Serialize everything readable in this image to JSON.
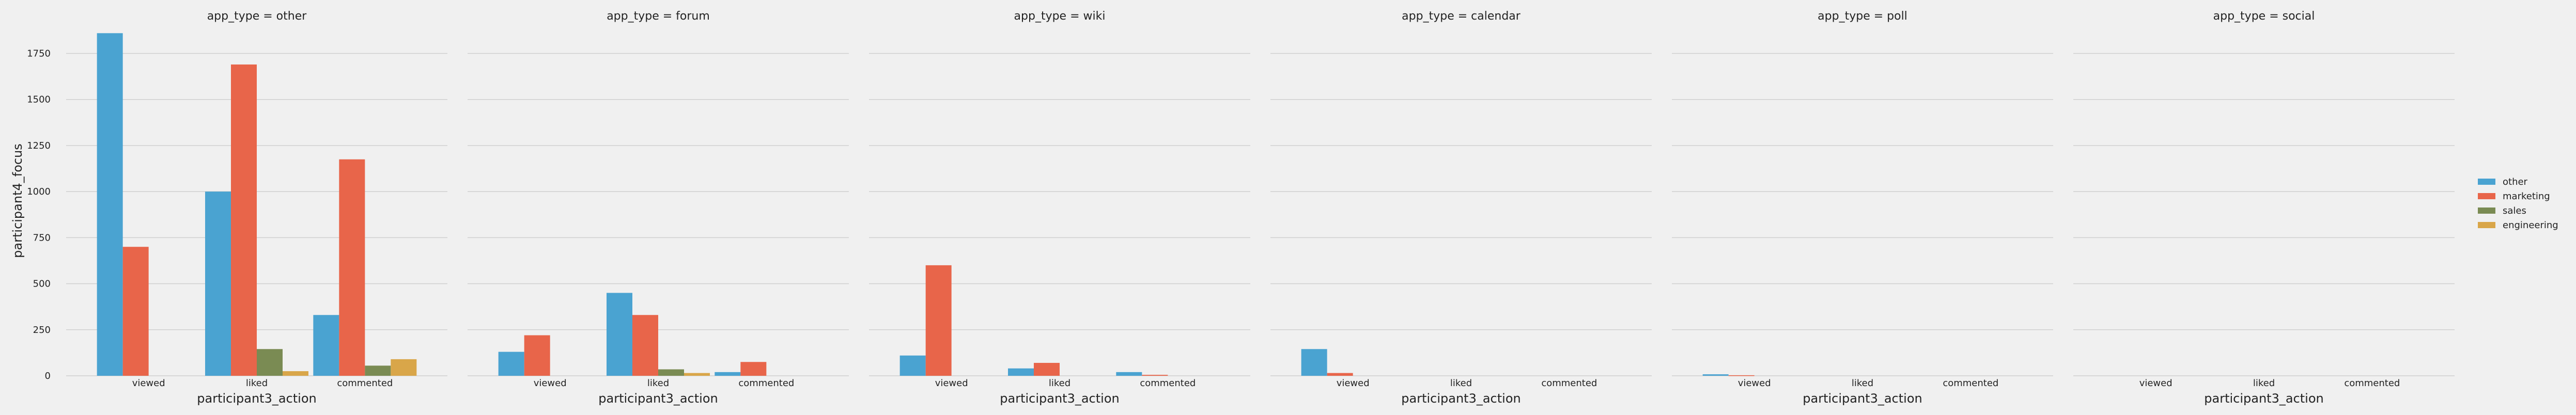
{
  "chart_data": {
    "type": "bar",
    "facet_prefix": "app_type = ",
    "facets": [
      "other",
      "forum",
      "wiki",
      "calendar",
      "poll",
      "social"
    ],
    "categories": [
      "viewed",
      "liked",
      "commented"
    ],
    "xlabel": "participant3_action",
    "ylabel": "participant4_focus",
    "ylim": [
      0,
      1900
    ],
    "yticks": [
      0,
      250,
      500,
      750,
      1000,
      1250,
      1500,
      1750
    ],
    "ytick_labels": [
      "0",
      "250",
      "500",
      "750",
      "1000",
      "1250",
      "1500",
      "1750"
    ],
    "grid": true,
    "legend_position": "right",
    "series_colors": {
      "other": "#4aa3d1",
      "marketing": "#e8654a",
      "sales": "#7a8b53",
      "engineering": "#d9a649"
    },
    "series": [
      {
        "name": "other",
        "values": {
          "other": [
            1860,
            1000,
            330
          ],
          "forum": [
            130,
            450,
            20
          ],
          "wiki": [
            110,
            40,
            20
          ],
          "calendar": [
            145,
            0,
            0
          ],
          "poll": [
            8,
            0,
            0
          ],
          "social": [
            0,
            0,
            0
          ]
        }
      },
      {
        "name": "marketing",
        "values": {
          "other": [
            700,
            1690,
            1175
          ],
          "forum": [
            220,
            330,
            75
          ],
          "wiki": [
            600,
            70,
            5
          ],
          "calendar": [
            15,
            0,
            0
          ],
          "poll": [
            3,
            0,
            0
          ],
          "social": [
            0,
            0,
            0
          ]
        }
      },
      {
        "name": "sales",
        "values": {
          "other": [
            0,
            145,
            55
          ],
          "forum": [
            0,
            35,
            0
          ],
          "wiki": [
            0,
            0,
            0
          ],
          "calendar": [
            0,
            0,
            0
          ],
          "poll": [
            0,
            0,
            0
          ],
          "social": [
            0,
            0,
            0
          ]
        }
      },
      {
        "name": "engineering",
        "values": {
          "other": [
            0,
            25,
            90
          ],
          "forum": [
            0,
            15,
            0
          ],
          "wiki": [
            0,
            0,
            0
          ],
          "calendar": [
            0,
            0,
            0
          ],
          "poll": [
            0,
            0,
            0
          ],
          "social": [
            0,
            0,
            0
          ]
        }
      }
    ]
  }
}
